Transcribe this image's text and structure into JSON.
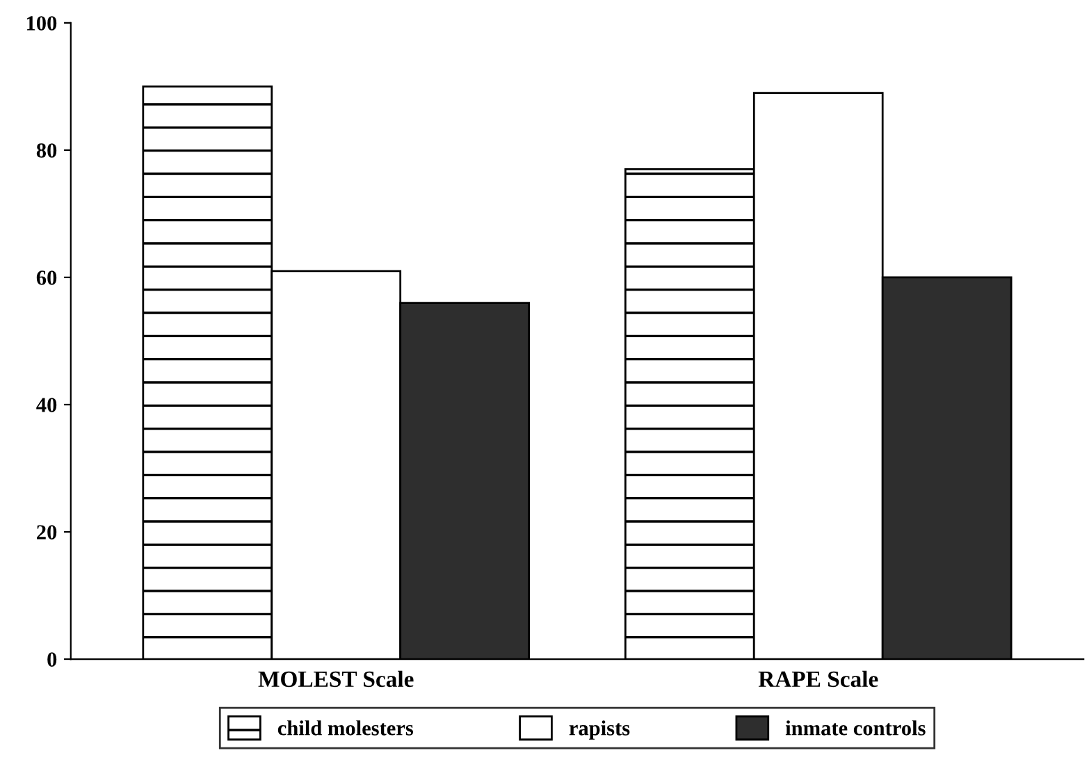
{
  "chart_data": {
    "type": "bar",
    "categories": [
      "MOLEST Scale",
      "RAPE Scale"
    ],
    "series": [
      {
        "name": "child molesters",
        "color": "#000000",
        "values": [
          90,
          77
        ]
      },
      {
        "name": "rapists",
        "color": "#ffffff",
        "values": [
          61,
          89
        ]
      },
      {
        "name": "inmate controls",
        "color": "#2e2e2e",
        "values": [
          56,
          60
        ]
      }
    ],
    "ylim": [
      0,
      100
    ],
    "yticks": [
      0,
      20,
      40,
      60,
      80,
      100
    ],
    "grid": false,
    "legend": "bottom"
  }
}
